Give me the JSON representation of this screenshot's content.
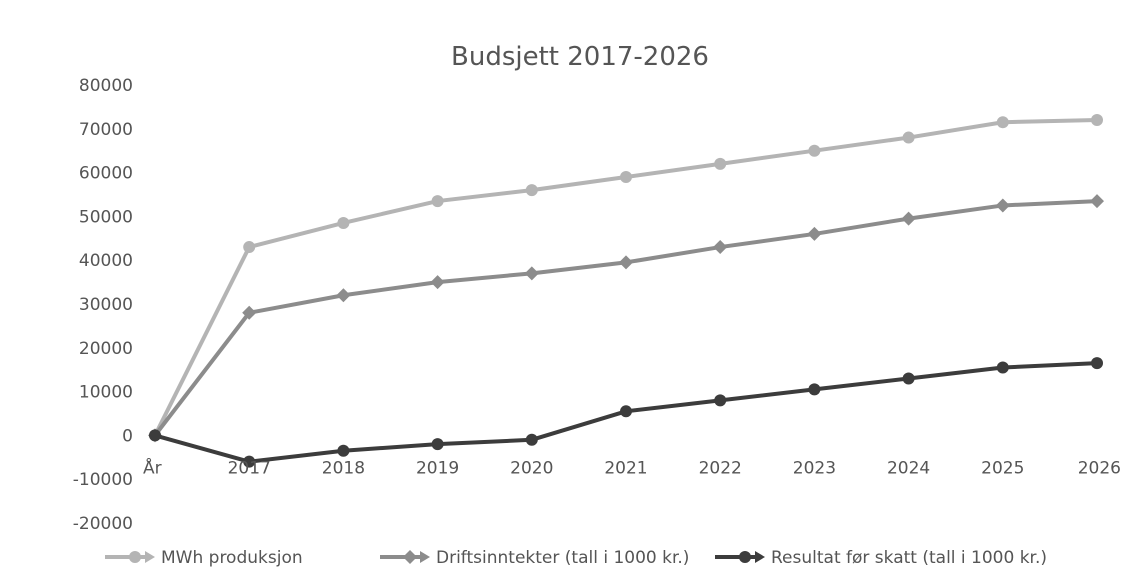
{
  "chart_data": {
    "type": "line",
    "title": "Budsjett 2017-2026",
    "categories": [
      "År",
      "2017",
      "2018",
      "2019",
      "2020",
      "2021",
      "2022",
      "2023",
      "2024",
      "2025",
      "2026"
    ],
    "ylim": [
      -20000,
      80000
    ],
    "yticks": [
      "80000",
      "70000",
      "60000",
      "50000",
      "40000",
      "30000",
      "20000",
      "10000",
      "0",
      "-10000",
      "-20000"
    ],
    "grid": false,
    "legend_position": "bottom",
    "series": [
      {
        "name": "MWh produksjon",
        "color": "#b4b4b4",
        "marker": "circle",
        "values": [
          0,
          43000,
          48500,
          53500,
          56000,
          59000,
          62000,
          65000,
          68000,
          71500,
          72000
        ]
      },
      {
        "name": "Driftsinntekter (tall i 1000 kr.)",
        "color": "#8c8c8c",
        "marker": "diamond",
        "values": [
          0,
          28000,
          32000,
          35000,
          37000,
          39500,
          43000,
          46000,
          49500,
          52500,
          53500
        ]
      },
      {
        "name": "Resultat før skatt (tall i 1000 kr.)",
        "color": "#3c3c3c",
        "marker": "circle",
        "values": [
          0,
          -6000,
          -3500,
          -2000,
          -1000,
          5500,
          8000,
          10500,
          13000,
          15500,
          16500
        ]
      }
    ]
  }
}
